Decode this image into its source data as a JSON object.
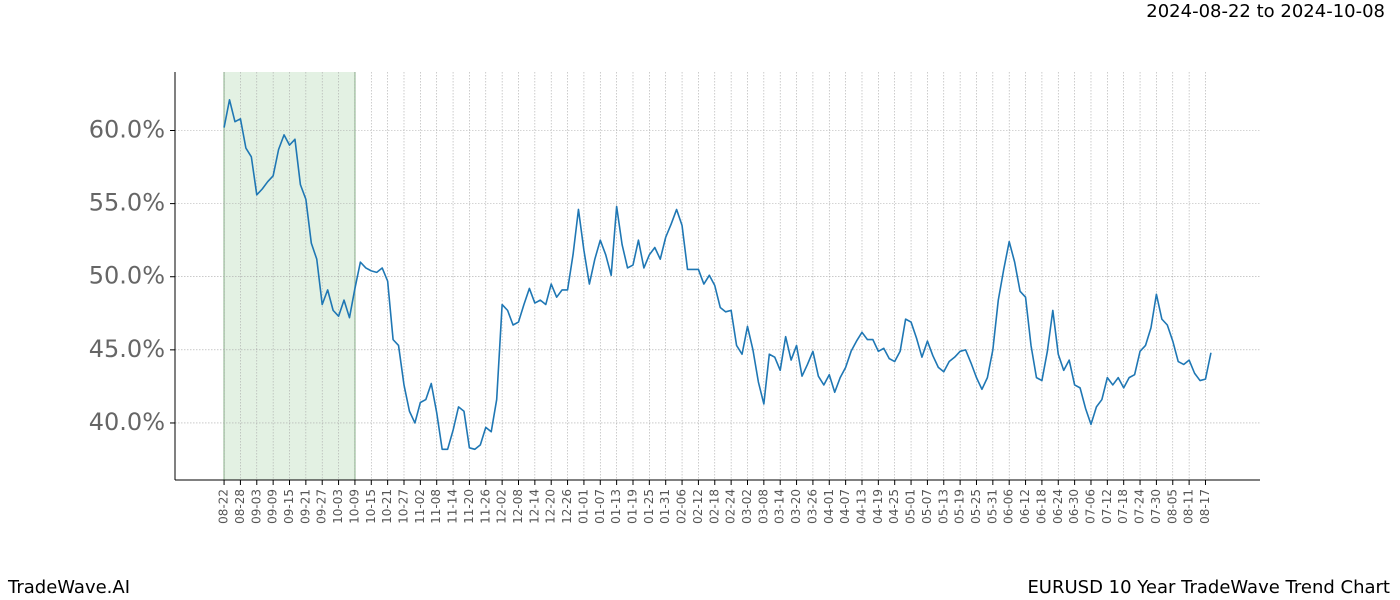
{
  "chart_data": {
    "type": "line",
    "title": "EURUSD 10 Year TradeWave Trend Chart",
    "date_range": "2024-08-22 to 2024-10-08",
    "watermark": "TradeWave.AI",
    "color": "#1f77b4",
    "highlight": {
      "from": "08-22",
      "to": "10-09",
      "color": "#e3f1e3"
    },
    "grid": true,
    "ylim": [
      36.1,
      64.0
    ],
    "yticks": [
      {
        "value": 40,
        "label": "40.0%"
      },
      {
        "value": 45,
        "label": "45.0%"
      },
      {
        "value": 50,
        "label": "50.0%"
      },
      {
        "value": 55,
        "label": "55.0%"
      },
      {
        "value": 60,
        "label": "60.0%"
      }
    ],
    "categories": [
      "08-22",
      null,
      null,
      "08-28",
      null,
      null,
      "09-03",
      null,
      null,
      "09-09",
      null,
      null,
      "09-15",
      null,
      null,
      "09-21",
      null,
      null,
      "09-27",
      null,
      null,
      "10-03",
      null,
      null,
      "10-09",
      null,
      null,
      "10-15",
      null,
      null,
      "10-21",
      null,
      null,
      "10-27",
      null,
      null,
      "11-02",
      null,
      null,
      "11-08",
      null,
      null,
      "11-14",
      null,
      null,
      "11-20",
      null,
      null,
      "11-26",
      null,
      null,
      "12-02",
      null,
      null,
      "12-08",
      null,
      null,
      "12-14",
      null,
      null,
      "12-20",
      null,
      null,
      "12-26",
      null,
      null,
      "01-01",
      null,
      null,
      "01-07",
      null,
      null,
      "01-13",
      null,
      null,
      "01-19",
      null,
      null,
      "01-25",
      null,
      null,
      "01-31",
      null,
      null,
      "02-06",
      null,
      null,
      "02-12",
      null,
      null,
      "02-18",
      null,
      null,
      "02-24",
      null,
      null,
      "03-02",
      null,
      null,
      "03-08",
      null,
      null,
      "03-14",
      null,
      null,
      "03-20",
      null,
      null,
      "03-26",
      null,
      null,
      "04-01",
      null,
      null,
      "04-07",
      null,
      null,
      "04-13",
      null,
      null,
      "04-19",
      null,
      null,
      "04-25",
      null,
      null,
      "05-01",
      null,
      null,
      "05-07",
      null,
      null,
      "05-13",
      null,
      null,
      "05-19",
      null,
      null,
      "05-25",
      null,
      null,
      "05-31",
      null,
      null,
      "06-06",
      null,
      null,
      "06-12",
      null,
      null,
      "06-18",
      null,
      null,
      "06-24",
      null,
      null,
      "06-30",
      null,
      null,
      "07-06",
      null,
      null,
      "07-12",
      null,
      null,
      "07-18",
      null,
      null,
      "07-24",
      null,
      null,
      "07-30",
      null,
      null,
      "08-05",
      null,
      null,
      "08-11",
      null,
      null,
      "08-17",
      null
    ],
    "values": [
      60.2,
      62.1,
      60.6,
      60.8,
      58.8,
      58.2,
      55.6,
      56.0,
      56.5,
      56.9,
      58.7,
      59.7,
      59.0,
      59.4,
      56.3,
      55.3,
      52.3,
      51.2,
      48.1,
      49.1,
      47.7,
      47.3,
      48.4,
      47.2,
      49.2,
      51.0,
      50.6,
      50.4,
      50.3,
      50.6,
      49.7,
      45.7,
      45.3,
      42.6,
      40.8,
      40.0,
      41.4,
      41.6,
      42.7,
      40.7,
      38.2,
      38.2,
      39.5,
      41.1,
      40.8,
      38.3,
      38.2,
      38.5,
      39.7,
      39.4,
      41.6,
      48.1,
      47.7,
      46.7,
      46.9,
      48.1,
      49.2,
      48.2,
      48.4,
      48.1,
      49.5,
      48.6,
      49.1,
      49.1,
      51.5,
      54.6,
      51.8,
      49.5,
      51.2,
      52.5,
      51.5,
      50.1,
      54.8,
      52.2,
      50.6,
      50.8,
      52.5,
      50.6,
      51.5,
      52.0,
      51.2,
      52.7,
      53.6,
      54.6,
      53.5,
      50.5,
      50.5,
      50.5,
      49.5,
      50.1,
      49.4,
      47.9,
      47.6,
      47.7,
      45.3,
      44.7,
      46.6,
      45.0,
      42.8,
      41.3,
      44.7,
      44.5,
      43.6,
      45.9,
      44.3,
      45.3,
      43.2,
      44.0,
      44.9,
      43.2,
      42.6,
      43.3,
      42.1,
      43.1,
      43.8,
      44.9,
      45.6,
      46.2,
      45.7,
      45.7,
      44.9,
      45.1,
      44.4,
      44.2,
      44.9,
      47.1,
      46.9,
      45.8,
      44.5,
      45.6,
      44.6,
      43.8,
      43.5,
      44.2,
      44.5,
      44.9,
      45.0,
      44.1,
      43.1,
      42.3,
      43.1,
      45.0,
      48.4,
      50.5,
      52.4,
      51.0,
      49.0,
      48.6,
      45.3,
      43.1,
      42.9,
      44.9,
      47.7,
      44.7,
      43.6,
      44.3,
      42.6,
      42.4,
      41.0,
      39.9,
      41.1,
      41.6,
      43.1,
      42.6,
      43.1,
      42.4,
      43.1,
      43.3,
      44.9,
      45.3,
      46.5,
      48.8,
      47.1,
      46.7,
      45.6,
      44.2,
      44.0,
      44.3,
      43.4,
      42.9,
      43.0,
      44.8
    ]
  }
}
